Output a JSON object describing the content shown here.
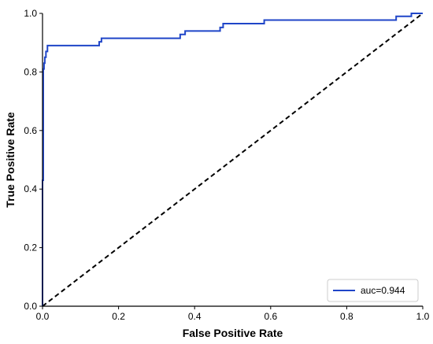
{
  "chart_data": {
    "type": "line",
    "title": "",
    "xlabel": "False Positive Rate",
    "ylabel": "True Positive Rate",
    "xlim": [
      0.0,
      1.0
    ],
    "ylim": [
      0.0,
      1.0
    ],
    "xticks": [
      "0.0",
      "0.2",
      "0.4",
      "0.6",
      "0.8",
      "1.0"
    ],
    "yticks": [
      "0.0",
      "0.2",
      "0.4",
      "0.6",
      "0.8",
      "1.0"
    ],
    "grid": false,
    "legend_position": "bottom-right",
    "series": [
      {
        "name": "auc=0.944",
        "color": "#1f45c8",
        "style": "solid",
        "x": [
          0.0,
          0.0,
          0.002,
          0.002,
          0.004,
          0.004,
          0.006,
          0.006,
          0.009,
          0.009,
          0.013,
          0.013,
          0.149,
          0.149,
          0.155,
          0.155,
          0.362,
          0.362,
          0.375,
          0.375,
          0.467,
          0.467,
          0.475,
          0.475,
          0.583,
          0.583,
          0.93,
          0.93,
          0.97,
          0.97,
          1.0
        ],
        "y": [
          0.0,
          0.43,
          0.43,
          0.81,
          0.81,
          0.83,
          0.83,
          0.85,
          0.85,
          0.87,
          0.87,
          0.89,
          0.89,
          0.903,
          0.903,
          0.915,
          0.915,
          0.928,
          0.928,
          0.94,
          0.94,
          0.952,
          0.952,
          0.965,
          0.965,
          0.977,
          0.977,
          0.99,
          0.99,
          1.0,
          1.0
        ]
      },
      {
        "name": "",
        "color": "#000000",
        "style": "dashed",
        "x": [
          0.0,
          1.0
        ],
        "y": [
          0.0,
          1.0
        ]
      }
    ]
  }
}
